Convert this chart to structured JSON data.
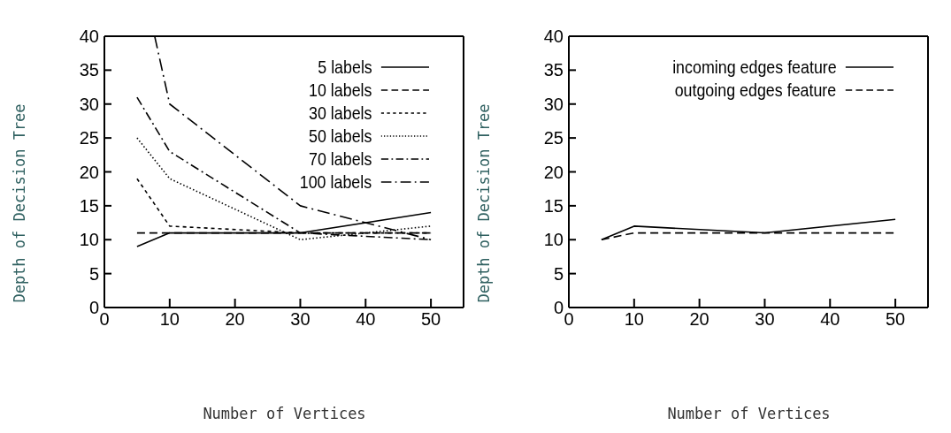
{
  "chart_data": [
    {
      "type": "line",
      "xlabel": "Number of Vertices",
      "ylabel": "Depth of Decision Tree",
      "xlim": [
        0,
        55
      ],
      "xticks": [
        0,
        10,
        20,
        30,
        40,
        50
      ],
      "ylim": [
        0,
        40
      ],
      "yticks": [
        0,
        5,
        10,
        15,
        20,
        25,
        30,
        35,
        40
      ],
      "legend": "top right",
      "marker": "none",
      "x": [
        5,
        10,
        30,
        50
      ],
      "series": [
        {
          "name": "5 labels",
          "color": "#000000",
          "line_style": "solid",
          "values": [
            9,
            11,
            11,
            14
          ]
        },
        {
          "name": "10 labels",
          "color": "#000000",
          "line_style": "dashed",
          "values": [
            11,
            11,
            11,
            11
          ]
        },
        {
          "name": "30 labels",
          "color": "#000000",
          "line_style": "shortdash",
          "values": [
            19,
            12,
            11,
            11
          ]
        },
        {
          "name": "50 labels",
          "color": "#000000",
          "line_style": "dotted",
          "values": [
            25,
            19,
            10,
            12
          ]
        },
        {
          "name": "70 labels",
          "color": "#000000",
          "line_style": "dashdot",
          "values": [
            31,
            23,
            11,
            10
          ]
        },
        {
          "name": "100 labels",
          "color": "#000000",
          "line_style": "longdashdot",
          "x": [
            7.7,
            10,
            30,
            50
          ],
          "values": [
            40,
            30,
            15,
            10
          ]
        }
      ]
    },
    {
      "type": "line",
      "xlabel": "Number of Vertices",
      "ylabel": "Depth of Decision Tree",
      "xlim": [
        0,
        55
      ],
      "xticks": [
        0,
        10,
        20,
        30,
        40,
        50
      ],
      "ylim": [
        0,
        40
      ],
      "yticks": [
        0,
        5,
        10,
        15,
        20,
        25,
        30,
        35,
        40
      ],
      "legend": "top right",
      "marker": "none",
      "x": [
        5,
        10,
        30,
        50
      ],
      "series": [
        {
          "name": "incoming edges feature",
          "color": "#000000",
          "line_style": "solid",
          "values": [
            10,
            12,
            11,
            13
          ]
        },
        {
          "name": "outgoing edges feature",
          "color": "#000000",
          "line_style": "dashed",
          "values": [
            10,
            11,
            11,
            11
          ]
        }
      ]
    }
  ]
}
